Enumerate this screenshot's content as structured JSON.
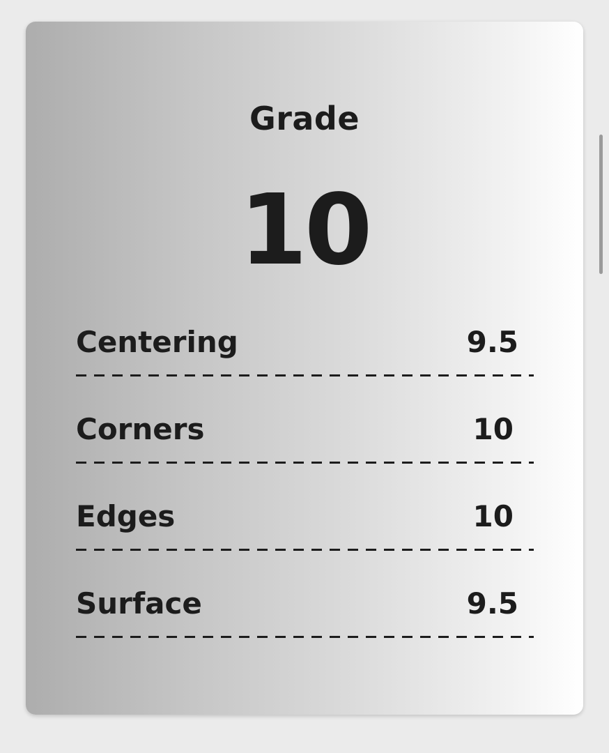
{
  "card": {
    "title": "Grade",
    "grade": "10",
    "subgrades": [
      {
        "label": "Centering",
        "value": "9.5"
      },
      {
        "label": "Corners",
        "value": "10"
      },
      {
        "label": "Edges",
        "value": "10"
      },
      {
        "label": "Surface",
        "value": "9.5"
      }
    ]
  }
}
